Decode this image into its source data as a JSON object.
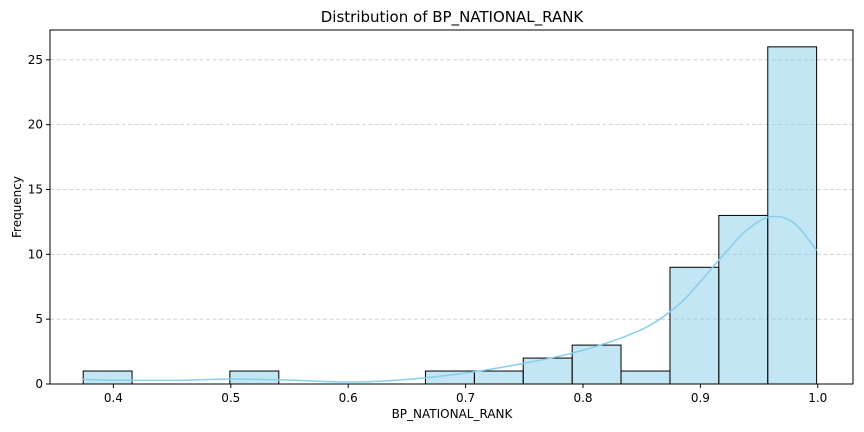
{
  "chart_data": {
    "type": "bar",
    "title": "Distribution of BP_NATIONAL_RANK",
    "xlabel": "BP_NATIONAL_RANK",
    "ylabel": "Frequency",
    "xlim": [
      0.346,
      1.03
    ],
    "ylim": [
      0,
      27.3
    ],
    "grid": "y-dashed",
    "bar_color": "#87CEEB",
    "kde_color": "#87CEEB",
    "xticks": [
      0.4,
      0.5,
      0.6,
      0.7,
      0.8,
      0.9,
      1.0
    ],
    "xtick_labels": [
      "0.4",
      "0.5",
      "0.6",
      "0.7",
      "0.8",
      "0.9",
      "1.0"
    ],
    "yticks": [
      0,
      5,
      10,
      15,
      20,
      25
    ],
    "ytick_labels": [
      "0",
      "5",
      "10",
      "15",
      "20",
      "25"
    ],
    "bins": {
      "edges": [
        0.3743,
        0.4159,
        0.4576,
        0.4992,
        0.5409,
        0.5825,
        0.6242,
        0.6658,
        0.7075,
        0.7491,
        0.7908,
        0.8324,
        0.8741,
        0.9157,
        0.9574,
        0.999
      ],
      "counts": [
        1,
        0,
        0,
        1,
        0,
        0,
        0,
        1,
        1,
        2,
        3,
        1,
        9,
        13,
        26
      ]
    },
    "kde": {
      "x": [
        0.374,
        0.4,
        0.45,
        0.5,
        0.55,
        0.6,
        0.65,
        0.7,
        0.75,
        0.8,
        0.85,
        0.88,
        0.9,
        0.92,
        0.94,
        0.96,
        0.98,
        0.999
      ],
      "y": [
        0.35,
        0.3,
        0.28,
        0.38,
        0.3,
        0.15,
        0.35,
        0.85,
        1.6,
        2.6,
        4.2,
        6.0,
        7.9,
        10.0,
        11.9,
        12.9,
        12.4,
        10.3
      ]
    }
  }
}
